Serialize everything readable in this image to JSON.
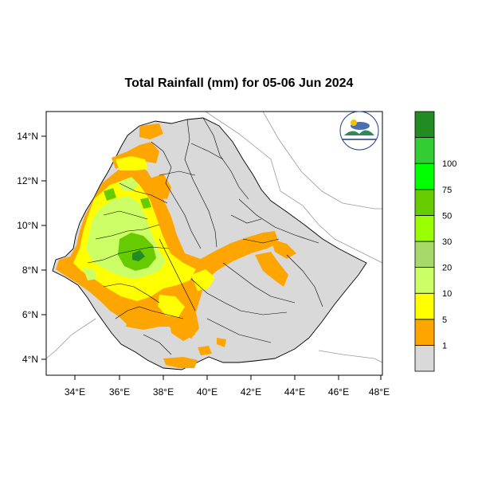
{
  "title": "Total Rainfall (mm) for 05-06 Jun 2024",
  "x_ticks": [
    "34°E",
    "36°E",
    "38°E",
    "40°E",
    "42°E",
    "44°E",
    "46°E",
    "48°E"
  ],
  "y_ticks": [
    "14°N",
    "12°N",
    "10°N",
    "8°N",
    "6°N",
    "4°N"
  ],
  "legend": {
    "labels": [
      "1",
      "5",
      "10",
      "20",
      "30",
      "50",
      "75",
      "100"
    ],
    "colors": [
      "#d9d9d9",
      "#ffa500",
      "#ffff00",
      "#ccff66",
      "#a6d96a",
      "#99ff00",
      "#66cc00",
      "#00ff00",
      "#33cc33",
      "#228b22"
    ]
  },
  "colors": {
    "land": "#d9d9d9",
    "light": "#ffa500",
    "moderate": "#ffff00",
    "heavy": "#ccff66",
    "very_heavy": "#66cc00",
    "extreme": "#228b22"
  },
  "logo_icon": "ethiopian-meteorology-institute-logo"
}
